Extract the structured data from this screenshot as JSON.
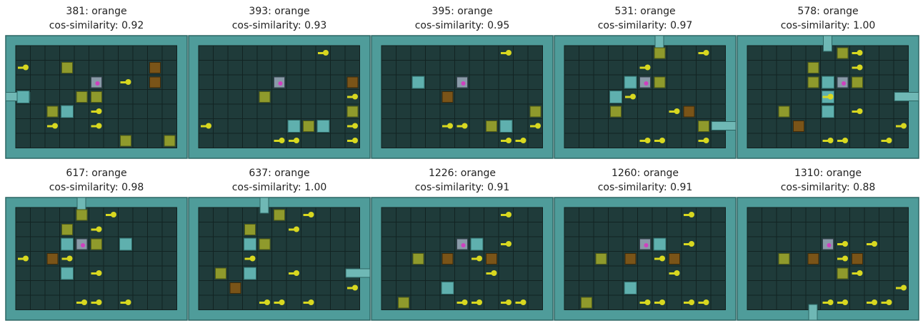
{
  "panels": [
    {
      "title": "381: orange",
      "subtitle": "cos-similarity: 0.92"
    },
    {
      "title": "393: orange",
      "subtitle": "cos-similarity: 0.93"
    },
    {
      "title": "395: orange",
      "subtitle": "cos-similarity: 0.95"
    },
    {
      "title": "531: orange",
      "subtitle": "cos-similarity: 0.97"
    },
    {
      "title": "578: orange",
      "subtitle": "cos-similarity: 1.00"
    },
    {
      "title": "617: orange",
      "subtitle": "cos-similarity: 0.98"
    },
    {
      "title": "637: orange",
      "subtitle": "cos-similarity: 1.00"
    },
    {
      "title": "1226: orange",
      "subtitle": "cos-similarity: 0.91"
    },
    {
      "title": "1260: orange",
      "subtitle": "cos-similarity: 0.91"
    },
    {
      "title": "1310: orange",
      "subtitle": "cos-similarity: 0.88"
    }
  ]
}
